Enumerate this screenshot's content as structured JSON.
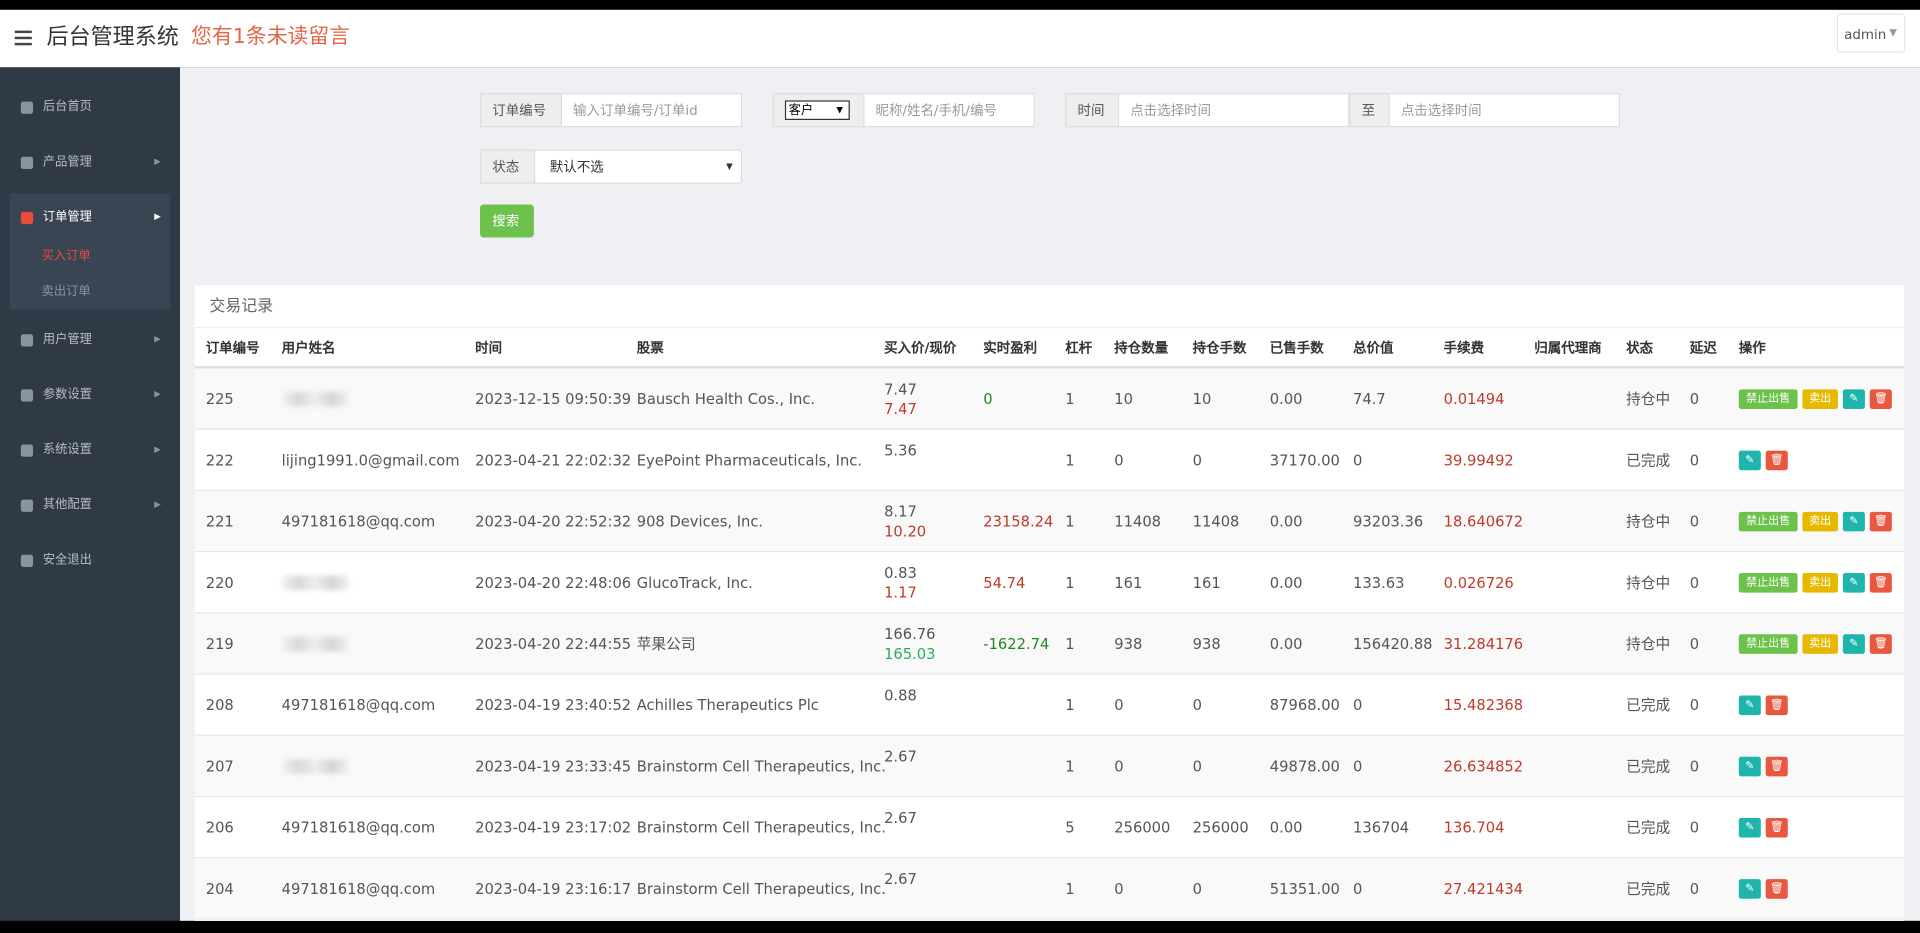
{
  "header": {
    "title": "后台管理系统",
    "notice": "您有1条未读留言",
    "user": "admin"
  },
  "sidebar": {
    "items": [
      "后台首页",
      "产品管理",
      "订单管理",
      "用户管理",
      "参数设置",
      "系统设置",
      "其他配置",
      "安全退出"
    ],
    "sub_items": [
      "买入订单",
      "卖出订单"
    ]
  },
  "filters": {
    "order_label": "订单编号",
    "order_placeholder": "输入订单编号/订单id",
    "customer_select": "客户",
    "customer_placeholder": "昵称/姓名/手机/编号",
    "time_label": "时间",
    "time_placeholder_from": "点击选择时间",
    "to_label": "至",
    "time_placeholder_to": "点击选择时间",
    "status_label": "状态",
    "status_select": "默认不选",
    "search": "搜索"
  },
  "table": {
    "title": "交易记录",
    "actions": {
      "ban": "禁止出售",
      "sell": "卖出"
    },
    "columns": [
      "订单编号",
      "用户姓名",
      "时间",
      "股票",
      "买入价/现价",
      "实时盈利",
      "杠杆",
      "持仓数量",
      "持仓手数",
      "已售手数",
      "总价值",
      "手续费",
      "归属代理商",
      "状态",
      "延迟",
      "操作"
    ],
    "rows": [
      {
        "id": "225",
        "time": "2023-12-15 09:50:39",
        "stock": "Bausch Health Cos., Inc.",
        "buy": "7.47",
        "current": "7.47",
        "profit": "0",
        "lever": "1",
        "qty": "10",
        "lots": "10",
        "sold": "0.00",
        "total": "74.7",
        "fee": "0.01494",
        "status": "持仓中",
        "delay": "0"
      },
      {
        "id": "222",
        "user": "lijing1991.0@gmail.com",
        "time": "2023-04-21 22:02:32",
        "stock": "EyePoint Pharmaceuticals, Inc.",
        "buy": "5.36",
        "lever": "1",
        "qty": "0",
        "lots": "0",
        "sold": "37170.00",
        "total": "0",
        "fee": "39.99492",
        "status": "已完成",
        "delay": "0"
      },
      {
        "id": "221",
        "user": "497181618@qq.com",
        "time": "2023-04-20 22:52:32",
        "stock": "908 Devices, Inc.",
        "buy": "8.17",
        "current": "10.20",
        "profit": "23158.24",
        "lever": "1",
        "qty": "11408",
        "lots": "11408",
        "sold": "0.00",
        "total": "93203.36",
        "fee": "18.640672",
        "status": "持仓中",
        "delay": "0"
      },
      {
        "id": "220",
        "time": "2023-04-20 22:48:06",
        "stock": "GlucoTrack, Inc.",
        "buy": "0.83",
        "current": "1.17",
        "profit": "54.74",
        "lever": "1",
        "qty": "161",
        "lots": "161",
        "sold": "0.00",
        "total": "133.63",
        "fee": "0.026726",
        "status": "持仓中",
        "delay": "0"
      },
      {
        "id": "219",
        "time": "2023-04-20 22:44:55",
        "stock": "苹果公司",
        "buy": "166.76",
        "current": "165.03",
        "profit": "-1622.74",
        "lever": "1",
        "qty": "938",
        "lots": "938",
        "sold": "0.00",
        "total": "156420.88",
        "fee": "31.284176",
        "status": "持仓中",
        "delay": "0"
      },
      {
        "id": "208",
        "user": "497181618@qq.com",
        "time": "2023-04-19 23:40:52",
        "stock": "Achilles Therapeutics Plc",
        "buy": "0.88",
        "lever": "1",
        "qty": "0",
        "lots": "0",
        "sold": "87968.00",
        "total": "0",
        "fee": "15.482368",
        "status": "已完成",
        "delay": "0"
      },
      {
        "id": "207",
        "time": "2023-04-19 23:33:45",
        "stock": "Brainstorm Cell Therapeutics, Inc.",
        "buy": "2.67",
        "lever": "1",
        "qty": "0",
        "lots": "0",
        "sold": "49878.00",
        "total": "0",
        "fee": "26.634852",
        "status": "已完成",
        "delay": "0"
      },
      {
        "id": "206",
        "user": "497181618@qq.com",
        "time": "2023-04-19 23:17:02",
        "stock": "Brainstorm Cell Therapeutics, Inc.",
        "buy": "2.67",
        "lever": "5",
        "qty": "256000",
        "lots": "256000",
        "sold": "0.00",
        "total": "136704",
        "fee": "136.704",
        "status": "已完成",
        "delay": "0"
      },
      {
        "id": "204",
        "user": "497181618@qq.com",
        "time": "2023-04-19 23:16:17",
        "stock": "Brainstorm Cell Therapeutics, Inc.",
        "buy": "2.67",
        "lever": "1",
        "qty": "0",
        "lots": "0",
        "sold": "51351.00",
        "total": "0",
        "fee": "27.421434",
        "status": "已完成",
        "delay": "0"
      }
    ]
  }
}
